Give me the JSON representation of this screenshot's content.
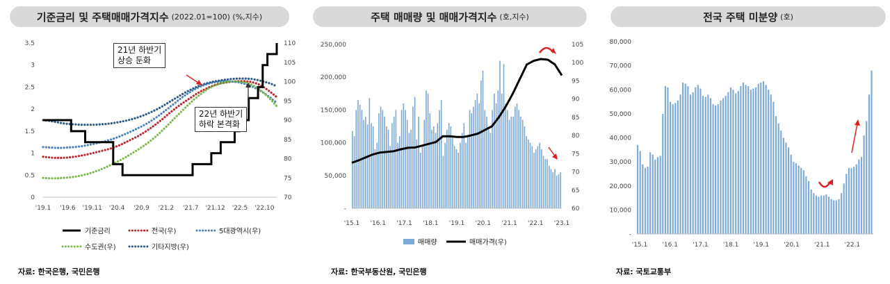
{
  "chart_data": [
    {
      "type": "line",
      "title": "기준금리 및 주택매매가격지수",
      "subtitle": "(2022.01=100) (%,지수)",
      "x_labels": [
        "'19.1",
        "'19.6",
        "'19.11",
        "'20.4",
        "'20.9",
        "'21.2",
        "'21.7",
        "'21.12",
        "'22.5",
        "'22.10"
      ],
      "y_left_ticks": [
        "0",
        "0.5",
        "1",
        "1.5",
        "2",
        "2.5",
        "3",
        "3.5"
      ],
      "y_right_ticks": [
        "70",
        "75",
        "80",
        "85",
        "90",
        "95",
        "100",
        "105",
        "110"
      ],
      "ylim_left": [
        0,
        3.5
      ],
      "ylim_right": [
        70,
        110
      ],
      "rate_series": {
        "name": "기준금리",
        "axis": "left",
        "values": [
          1.75,
          1.75,
          1.75,
          1.75,
          1.75,
          1.75,
          1.5,
          1.5,
          1.5,
          1.25,
          1.25,
          1.25,
          1.25,
          1.25,
          1.25,
          0.75,
          0.75,
          0.5,
          0.5,
          0.5,
          0.5,
          0.5,
          0.5,
          0.5,
          0.5,
          0.5,
          0.5,
          0.5,
          0.5,
          0.5,
          0.5,
          0.5,
          0.75,
          0.75,
          0.75,
          0.75,
          1.0,
          1.0,
          1.25,
          1.25,
          1.25,
          1.5,
          1.75,
          1.75,
          2.25,
          2.25,
          2.5,
          3.0,
          3.25,
          3.25,
          3.5
        ]
      },
      "index_series": [
        {
          "name": "전국(우)",
          "axis": "right",
          "values": [
            80.5,
            80.3,
            80.2,
            80.2,
            80.3,
            80.5,
            80.8,
            81.1,
            81.5,
            81.9,
            82.3,
            82.8,
            83.4,
            84.2,
            85.0,
            85.8,
            86.8,
            87.9,
            89.1,
            90.4,
            91.8,
            93.1,
            94.3,
            95.4,
            96.5,
            97.5,
            98.3,
            99.0,
            99.5,
            99.8,
            100.0,
            100.1,
            100.1,
            99.9,
            99.4,
            98.5,
            97.3,
            96.0
          ]
        },
        {
          "name": "5대광역시(우)",
          "axis": "right",
          "values": [
            83.0,
            82.9,
            82.8,
            82.8,
            82.9,
            83.0,
            83.2,
            83.5,
            83.8,
            84.2,
            84.6,
            85.1,
            85.7,
            86.4,
            87.1,
            87.9,
            88.7,
            89.7,
            90.8,
            92.0,
            93.3,
            94.6,
            95.9,
            97.0,
            98.0,
            98.8,
            99.4,
            99.8,
            100.0,
            100.1,
            100.0,
            99.8,
            99.4,
            98.8,
            98.0,
            97.0,
            95.8,
            94.5
          ]
        },
        {
          "name": "수도권(우)",
          "axis": "right",
          "values": [
            75.0,
            74.9,
            74.9,
            75.0,
            75.1,
            75.3,
            75.6,
            76.0,
            76.5,
            77.1,
            77.8,
            78.6,
            79.4,
            80.3,
            81.3,
            82.3,
            83.4,
            84.6,
            86.0,
            87.5,
            89.1,
            90.8,
            92.4,
            94.0,
            95.5,
            96.8,
            98.0,
            98.9,
            99.5,
            99.9,
            100.0,
            100.0,
            99.8,
            99.2,
            98.3,
            97.0,
            95.4,
            93.6
          ]
        },
        {
          "name": "기타지방(우)",
          "axis": "right",
          "values": [
            90.0,
            89.8,
            89.5,
            89.2,
            89.0,
            88.9,
            88.8,
            88.8,
            88.8,
            88.9,
            89.0,
            89.2,
            89.5,
            89.8,
            90.2,
            90.7,
            91.3,
            92.0,
            92.8,
            93.7,
            94.7,
            95.7,
            96.7,
            97.6,
            98.4,
            99.1,
            99.6,
            100.0,
            100.3,
            100.5,
            100.7,
            100.8,
            100.8,
            100.7,
            100.4,
            100.0,
            99.5,
            98.8
          ]
        }
      ],
      "legend": [
        "기준금리",
        "전국(우)",
        "5대광역시(우)",
        "수도권(우)",
        "기타지방(우)"
      ],
      "annotations": [
        {
          "text_line1": "21년 하반기",
          "text_line2": "상승 둔화"
        },
        {
          "text_line1": "22년 하반기",
          "text_line2": "하락 본격화"
        }
      ]
    },
    {
      "type": "bar+line",
      "title": "주택 매매량 및 매매가격지수",
      "subtitle": "(호,지수)",
      "x_labels": [
        "'15.1",
        "'16.1",
        "'17.1",
        "'18.1",
        "'19.1",
        "'20.1",
        "'21.1",
        "'22.1",
        "'23.1"
      ],
      "y_left_ticks": [
        "-",
        "50,000",
        "100,000",
        "150,000",
        "200,000",
        "250,000"
      ],
      "y_right_ticks": [
        "60",
        "65",
        "70",
        "75",
        "80",
        "85",
        "90",
        "95",
        "100",
        "105"
      ],
      "ylim_left": [
        0,
        250000
      ],
      "ylim_right": [
        60,
        105
      ],
      "volume_series": {
        "name": "매매량",
        "axis": "left",
        "values": [
          118000,
          110000,
          150000,
          165000,
          158000,
          150000,
          135000,
          140000,
          128000,
          168000,
          130000,
          125000,
          90000,
          100000,
          145000,
          155000,
          150000,
          140000,
          125000,
          120000,
          95000,
          130000,
          140000,
          150000,
          100000,
          110000,
          150000,
          160000,
          150000,
          135000,
          115000,
          120000,
          155000,
          170000,
          105000,
          140000,
          85000,
          95000,
          135000,
          180000,
          175000,
          145000,
          120000,
          125000,
          115000,
          130000,
          150000,
          165000,
          80000,
          100000,
          120000,
          130000,
          125000,
          110000,
          95000,
          90000,
          85000,
          100000,
          115000,
          130000,
          100000,
          110000,
          150000,
          145000,
          155000,
          165000,
          175000,
          160000,
          195000,
          210000,
          150000,
          140000,
          120000,
          115000,
          150000,
          175000,
          160000,
          180000,
          225000,
          175000,
          220000,
          160000,
          150000,
          135000,
          140000,
          140000,
          155000,
          160000,
          150000,
          140000,
          135000,
          125000,
          110000,
          105000,
          100000,
          95000,
          85000,
          90000,
          95000,
          100000,
          90000,
          80000,
          75000,
          75000,
          65000,
          60000,
          55000,
          60000,
          50000,
          52000,
          55000
        ]
      },
      "price_series": {
        "name": "매매가격",
        "axis": "right",
        "values": [
          72.5,
          73.2,
          74.0,
          74.8,
          75.3,
          75.5,
          75.7,
          76.2,
          76.6,
          76.7,
          77.2,
          77.7,
          78.2,
          79.8,
          79.8,
          79.6,
          79.6,
          80.0,
          80.5,
          81.5,
          82.5,
          85.0,
          88.0,
          91.5,
          95.5,
          99.5,
          100.5,
          101.0,
          100.8,
          99.5,
          96.5
        ]
      },
      "legend": [
        "매매량",
        "매매가격(우)"
      ]
    },
    {
      "type": "bar",
      "title": "전국 주택 미분양",
      "subtitle": "(호)",
      "x_labels": [
        "'15.1",
        "'16.1",
        "'17.1",
        "'18.1",
        "'19.1",
        "'20.1",
        "'21.1",
        "'22.1"
      ],
      "y_ticks": [
        "-",
        "10,000",
        "20,000",
        "30,000",
        "40,000",
        "50,000",
        "60,000",
        "70,000",
        "80,000"
      ],
      "ylim": [
        0,
        80000
      ],
      "values": [
        37000,
        34500,
        29000,
        27500,
        28000,
        34000,
        33000,
        31000,
        32000,
        32500,
        50000,
        61500,
        61000,
        55000,
        54000,
        54500,
        55500,
        58000,
        63000,
        62500,
        61500,
        58000,
        59000,
        61000,
        62000,
        60500,
        57500,
        57000,
        58000,
        56500,
        54000,
        53500,
        54000,
        55500,
        56500,
        57500,
        59000,
        61000,
        60000,
        58500,
        59500,
        61500,
        63000,
        62000,
        61500,
        60000,
        60500,
        61000,
        62500,
        63000,
        63500,
        62000,
        60000,
        58000,
        55000,
        49000,
        46000,
        43000,
        40000,
        38000,
        36000,
        33000,
        30000,
        29500,
        28500,
        27500,
        26500,
        24000,
        22000,
        18500,
        17000,
        16000,
        15500,
        16000,
        16000,
        16500,
        15500,
        14500,
        14000,
        14000,
        14500,
        17000,
        21000,
        25000,
        27500,
        27500,
        28000,
        29000,
        31000,
        32000,
        41000,
        47000,
        58000,
        68000
      ],
      "legend": []
    }
  ],
  "panel1": {
    "title": "기준금리 및 주택매매가격지수",
    "subtitle": "(2022.01=100) (%,지수)",
    "source": "자료: 한국은행, 국민은행",
    "ann1_line1": "21년 하반기",
    "ann1_line2": "상승 둔화",
    "ann2_line1": "22년 하반기",
    "ann2_line2": "하락 본격화"
  },
  "panel2": {
    "title": "주택 매매량 및 매매가격지수",
    "subtitle": "(호,지수)",
    "source": "자료: 한국부동산원, 국민은행"
  },
  "panel3": {
    "title": "전국 주택 미분양",
    "subtitle": "(호)",
    "source": "자료: 국토교통부"
  },
  "colors": {
    "rate": "#000000",
    "national": "#c0262d",
    "metro5": "#4f81bd",
    "capital": "#7fba4f",
    "other": "#2e5a87",
    "bars": "#7eaad8",
    "arrow": "#e02020",
    "title_bg": "#d9d9d9"
  }
}
